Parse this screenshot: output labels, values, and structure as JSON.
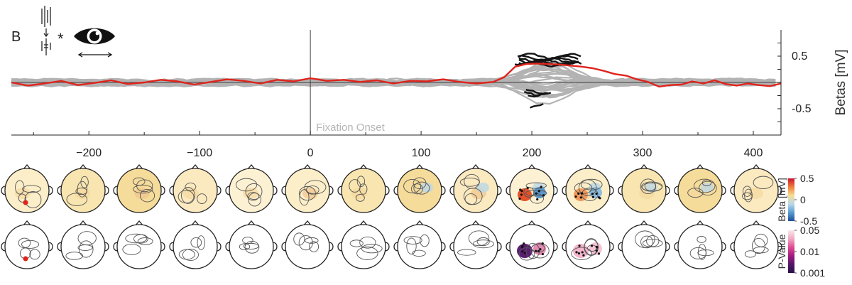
{
  "panel": {
    "letter": "B"
  },
  "chart_data": {
    "type": "line",
    "ylabel": "Betas [mV]",
    "xlim": [
      -270,
      425
    ],
    "ylim": [
      -1.0,
      1.0
    ],
    "xticks": [
      -200,
      -100,
      0,
      100,
      200,
      300,
      400
    ],
    "xtick_labels": [
      "−200",
      "−100",
      "0",
      "100",
      "200",
      "300",
      "400"
    ],
    "yticks": [
      0.5,
      -0.5
    ],
    "ytick_labels": [
      "0.5",
      "-0.5"
    ],
    "annotation": {
      "x": 0,
      "text": "Fixation Onset"
    },
    "colors": {
      "highlight": "#e0241c",
      "background": "#b3b3b3",
      "significant": "#141414",
      "zero": "#555555"
    },
    "series": [
      {
        "highlighted": true,
        "x": [
          -270,
          -255,
          -240,
          -225,
          -210,
          -195,
          -180,
          -165,
          -150,
          -135,
          -120,
          -105,
          -90,
          -75,
          -60,
          -45,
          -30,
          -15,
          0,
          15,
          30,
          45,
          60,
          75,
          90,
          105,
          120,
          135,
          150,
          165,
          175,
          185,
          195,
          205,
          215,
          225,
          235,
          245,
          255,
          265,
          275,
          285,
          295,
          305,
          315,
          325,
          335,
          345,
          355,
          365,
          375,
          385,
          395,
          405,
          415,
          425
        ],
        "y": [
          0.0,
          -0.06,
          -0.02,
          0.03,
          -0.05,
          -0.01,
          0.04,
          -0.03,
          0.0,
          0.05,
          0.02,
          -0.04,
          0.01,
          0.06,
          0.03,
          -0.02,
          0.05,
          0.02,
          0.08,
          0.03,
          0.05,
          0.01,
          0.04,
          -0.02,
          0.03,
          0.02,
          0.06,
          0.01,
          -0.02,
          0.01,
          0.1,
          0.3,
          0.35,
          0.36,
          0.35,
          0.34,
          0.32,
          0.3,
          0.27,
          0.22,
          0.16,
          0.13,
          0.06,
          0.01,
          -0.08,
          -0.05,
          -0.04,
          0.02,
          -0.02,
          0.04,
          -0.03,
          -0.06,
          -0.02,
          -0.05,
          -0.07,
          -0.02
        ]
      }
    ],
    "colorbars": [
      {
        "title": "Beta [mV]",
        "ticks": [
          "0.5",
          "0",
          "-0.5"
        ],
        "colors": [
          "#c8102e",
          "#f07d3a",
          "#f5dd93",
          "#b9d8ea",
          "#5a9bd0",
          "#1f4e9a"
        ]
      },
      {
        "title": "P-Value",
        "ticks": [
          "0.05",
          "0.01",
          "0.001"
        ],
        "colors": [
          "#f9e7ea",
          "#f0a9c4",
          "#e04b93",
          "#a11a7f",
          "#531668",
          "#2a0f47"
        ]
      }
    ]
  }
}
